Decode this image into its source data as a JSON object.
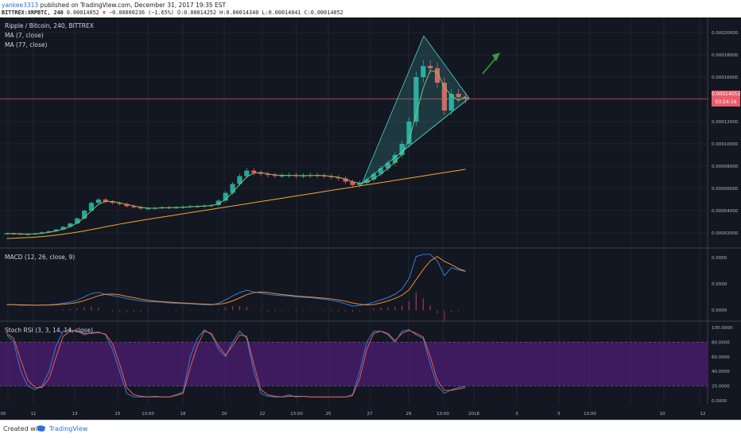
{
  "header": {
    "author": "yankee3313",
    "published_text": "published on TradingView.com, December 31, 2017 19:35 EST",
    "symbol": "BITTREX:XRPBTC, 240",
    "last": "0.00014052",
    "change": "−0.00000236 (−1.65%)",
    "open": "0.00014252",
    "high": "0.00014340",
    "low": "0.00014041",
    "close": "0.00014052"
  },
  "legend": {
    "title": "Ripple / Bitcoin, 240, BITTREX",
    "ma7": "MA (7, close)",
    "ma77": "MA (77, close)",
    "macd": "MACD (12, 26, close, 9)",
    "stoch": "Stoch RSI (3, 3, 14, 14, close)"
  },
  "price_label": {
    "value": "0.00014052",
    "countdown": "03:24:16"
  },
  "footer": {
    "created_with": "Created with",
    "brand": "TradingView"
  },
  "colors": {
    "background": "#131722",
    "grid": "#2a2e39",
    "up": "#26a69a",
    "down": "#ef5350",
    "ma7": "#7cc36b",
    "ma77": "#f6a530",
    "pattern": "#4fd1c5",
    "arrow": "#2e9e3a",
    "macd": "#2f7ed8",
    "signal": "#f08a2c",
    "stoch_k": "#2f7ed8",
    "stoch_d": "#f05b4a",
    "band": "#4a1d6e"
  },
  "chart_data": {
    "type": "candlestick",
    "x_ticks": [
      "00",
      "11",
      "13",
      "15",
      "13:00",
      "18",
      "20",
      "22",
      "13:00",
      "25",
      "27",
      "29",
      "13:00",
      "2018",
      "3",
      "5",
      "13:00",
      "10",
      "12"
    ],
    "price_axis": [
      "0.00020000",
      "0.00018000",
      "0.00016000",
      "0.00014000",
      "0.00012000",
      "0.00010000",
      "0.00008000",
      "0.00006000",
      "0.00004000",
      "0.00002000"
    ],
    "price_close": [
      1.95e-05,
      1.93e-05,
      1.88e-05,
      1.9e-05,
      1.95e-05,
      2.05e-05,
      2.15e-05,
      2.3e-05,
      2.55e-05,
      2.85e-05,
      3.3e-05,
      4e-05,
      4.7e-05,
      5e-05,
      4.8e-05,
      4.7e-05,
      4.6e-05,
      4.4e-05,
      4.3e-05,
      4.2e-05,
      4.2e-05,
      4.25e-05,
      4.3e-05,
      4.25e-05,
      4.3e-05,
      4.35e-05,
      4.4e-05,
      4.4e-05,
      4.45e-05,
      4.5e-05,
      4.9e-05,
      5.6e-05,
      6.4e-05,
      7.1e-05,
      7.6e-05,
      7.4e-05,
      7.3e-05,
      7.2e-05,
      7.15e-05,
      7.15e-05,
      7.2e-05,
      7.1e-05,
      7.15e-05,
      7.2e-05,
      7.15e-05,
      7.1e-05,
      7e-05,
      6.9e-05,
      6.6e-05,
      6.3e-05,
      6.5e-05,
      6.8e-05,
      7.3e-05,
      7.8e-05,
      8.3e-05,
      9e-05,
      0.0001,
      0.00012,
      0.00016,
      0.00017,
      0.000168,
      0.000155,
      0.00013,
      0.000145,
      0.000142,
      0.0001405
    ],
    "ma77": [
      1.5e-05,
      1.52e-05,
      1.55e-05,
      1.58e-05,
      1.62e-05,
      1.67e-05,
      1.73e-05,
      1.8e-05,
      1.88e-05,
      1.97e-05,
      2.07e-05,
      2.18e-05,
      2.3e-05,
      2.42e-05,
      2.55e-05,
      2.67e-05,
      2.79e-05,
      2.9e-05,
      3.01e-05,
      3.12e-05,
      3.22e-05,
      3.32e-05,
      3.42e-05,
      3.52e-05,
      3.62e-05,
      3.72e-05,
      3.82e-05,
      3.92e-05,
      4.02e-05,
      4.12e-05,
      4.22e-05,
      4.32e-05,
      4.42e-05,
      4.52e-05,
      4.62e-05,
      4.72e-05,
      4.82e-05,
      4.92e-05,
      5.02e-05,
      5.12e-05,
      5.22e-05,
      5.32e-05,
      5.42e-05,
      5.52e-05,
      5.62e-05,
      5.72e-05,
      5.82e-05,
      5.92e-05,
      6.02e-05,
      6.12e-05,
      6.22e-05,
      6.32e-05,
      6.42e-05,
      6.52e-05,
      6.62e-05,
      6.72e-05,
      6.82e-05,
      6.92e-05,
      7.02e-05,
      7.12e-05,
      7.22e-05,
      7.32e-05,
      7.42e-05,
      7.52e-05,
      7.62e-05,
      7.72e-05
    ],
    "macd_axis": [
      "0.0000",
      "0.0000",
      "0.0000"
    ],
    "stoch_axis": [
      "100.0000",
      "80.0000",
      "60.0000",
      "40.0000",
      "20.0000",
      "0.0000"
    ],
    "stoch_k": [
      90,
      80,
      40,
      20,
      15,
      20,
      40,
      75,
      95,
      97,
      95,
      90,
      93,
      94,
      90,
      70,
      40,
      10,
      5,
      5,
      5,
      6,
      5,
      5,
      8,
      12,
      60,
      85,
      97,
      90,
      70,
      60,
      80,
      95,
      85,
      40,
      10,
      6,
      5,
      5,
      8,
      5,
      6,
      5,
      5,
      5,
      5,
      5,
      5,
      8,
      40,
      80,
      95,
      95,
      90,
      80,
      95,
      97,
      90,
      85,
      50,
      20,
      10,
      15,
      18,
      20
    ],
    "stoch_d": [
      92,
      85,
      55,
      28,
      18,
      18,
      30,
      60,
      88,
      95,
      95,
      92,
      92,
      93,
      91,
      78,
      50,
      18,
      8,
      6,
      5,
      5,
      5,
      5,
      7,
      10,
      45,
      75,
      95,
      92,
      75,
      62,
      75,
      90,
      88,
      50,
      15,
      8,
      6,
      5,
      6,
      6,
      6,
      5,
      5,
      5,
      5,
      5,
      5,
      7,
      30,
      70,
      92,
      95,
      92,
      82,
      92,
      96,
      92,
      87,
      60,
      28,
      14,
      14,
      16,
      18
    ]
  }
}
